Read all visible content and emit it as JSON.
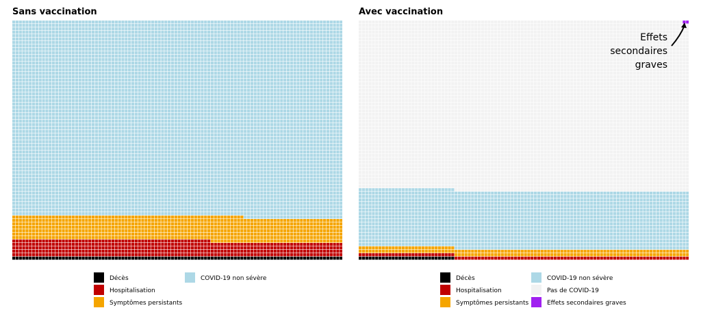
{
  "colors": {
    "deces": "#000000",
    "hospitalisation": "#c00000",
    "symptomes": "#f5a500",
    "covid_non_severe": "#add8e6",
    "pas_de_covid": "#f2f2f2",
    "effets_secondaires": "#a020f0",
    "grid_line": "#ffffff",
    "annotation": "#000000"
  },
  "chart_data": [
    {
      "type": "waffle",
      "title": "Sans vaccination",
      "grid": {
        "columns": 100,
        "rows": 70,
        "total_cells": 7000,
        "fill_order": "bottom-up, left-to-right"
      },
      "categories": [
        {
          "key": "deces",
          "label": "Décès",
          "cells": 100
        },
        {
          "key": "hospitalisation",
          "label": "Hospitalisation",
          "cells": 460
        },
        {
          "key": "symptomes",
          "label": "Symptômes persistants",
          "cells": 710
        },
        {
          "key": "covid_non_severe",
          "label": "COVID-19 non sévère",
          "cells": 5730
        }
      ],
      "legend": {
        "position": "bottom",
        "columns": [
          [
            "deces",
            "hospitalisation",
            "symptomes"
          ],
          [
            "covid_non_severe"
          ]
        ]
      }
    },
    {
      "type": "waffle",
      "title": "Avec vaccination",
      "grid": {
        "columns": 100,
        "rows": 70,
        "total_cells": 7000,
        "fill_order": "bottom-up, left-to-right"
      },
      "categories": [
        {
          "key": "deces",
          "label": "Décès",
          "cells": 29
        },
        {
          "key": "hospitalisation",
          "label": "Hospitalisation",
          "cells": 100
        },
        {
          "key": "symptomes",
          "label": "Symptômes persistants",
          "cells": 200
        },
        {
          "key": "covid_non_severe",
          "label": "COVID-19 non sévère",
          "cells": 1700
        },
        {
          "key": "pas_de_covid",
          "label": "Pas de COVID-19",
          "cells": 4969
        },
        {
          "key": "effets_secondaires",
          "label": "Effets secondaires graves",
          "cells": 2
        }
      ],
      "annotation": {
        "lines": [
          "Effets",
          "secondaires",
          "graves"
        ],
        "target": "effets_secondaires"
      },
      "legend": {
        "position": "bottom",
        "columns": [
          [
            "deces",
            "hospitalisation",
            "symptomes"
          ],
          [
            "covid_non_severe",
            "pas_de_covid",
            "effets_secondaires"
          ]
        ]
      }
    }
  ]
}
